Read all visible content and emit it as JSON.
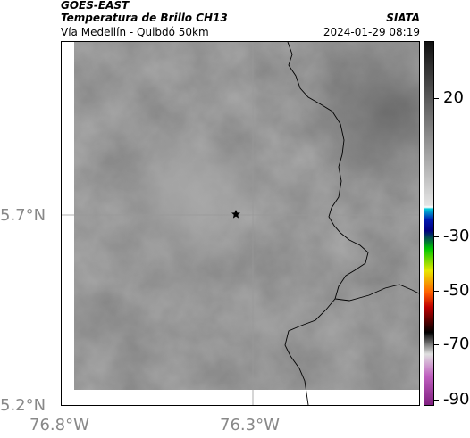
{
  "header": {
    "satellite": "GOES-EAST",
    "product": "Temperatura de Brillo CH13",
    "region": "Vía Medellín - Quibdó 50km",
    "org": "SIATA",
    "datetime": "2024-01-29 08:19"
  },
  "axes": {
    "y_labels": [
      "5.7°N",
      "5.2°N"
    ],
    "x_labels": [
      "76.8°W",
      "76.3°W"
    ]
  },
  "colorbar": {
    "labels": [
      "20",
      "-30",
      "-50",
      "-70",
      "-90"
    ]
  },
  "colors": {
    "land": "#7a7a7a",
    "border": "#000000"
  },
  "icons": {
    "marker": "star-icon"
  }
}
